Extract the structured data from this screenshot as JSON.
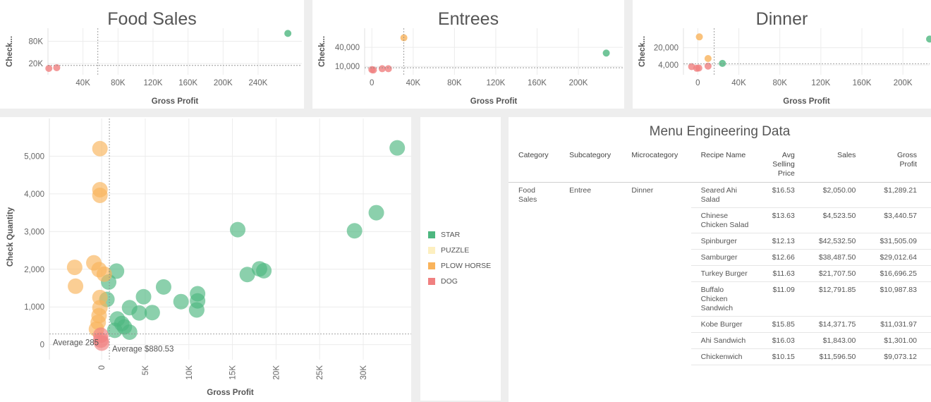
{
  "colors": {
    "star": "#4db77f",
    "puzzle": "#fdefc0",
    "plow_horse": "#f9b35b",
    "dog": "#f08080",
    "axis_text": "#666666",
    "grid": "#ececec"
  },
  "legend": {
    "items": [
      {
        "label": "STAR",
        "color": "#4db77f"
      },
      {
        "label": "PUZZLE",
        "color": "#fdefc0"
      },
      {
        "label": "PLOW HORSE",
        "color": "#f9b35b"
      },
      {
        "label": "DOG",
        "color": "#f08080"
      }
    ]
  },
  "chart_data": [
    {
      "type": "scatter",
      "title": "Food Sales",
      "xlabel": "Gross Profit",
      "ylabel": "Check...",
      "xlim": [
        0,
        290000
      ],
      "ylim": [
        -10000,
        115000
      ],
      "xticks": [
        40000,
        80000,
        120000,
        160000,
        200000,
        240000
      ],
      "xtick_labels": [
        "40K",
        "80K",
        "120K",
        "160K",
        "200K",
        "240K"
      ],
      "yticks": [
        20000,
        80000
      ],
      "ytick_labels": [
        "20K",
        "80K"
      ],
      "ref_x": 57000,
      "ref_y": 15000,
      "points": [
        {
          "x": 1000,
          "y": 7000,
          "cls": "dog"
        },
        {
          "x": 10000,
          "y": 9000,
          "cls": "dog"
        },
        {
          "x": 274000,
          "y": 101000,
          "cls": "star"
        }
      ]
    },
    {
      "type": "scatter",
      "title": "Entrees",
      "xlabel": "Gross Profit",
      "ylabel": "Check...",
      "xlim": [
        -7000,
        243000
      ],
      "ylim": [
        -3000,
        70000
      ],
      "xticks": [
        0,
        40000,
        80000,
        120000,
        160000,
        200000
      ],
      "xtick_labels": [
        "0",
        "40K",
        "80K",
        "120K",
        "160K",
        "200K"
      ],
      "yticks": [
        10000,
        40000
      ],
      "ytick_labels": [
        "10,000",
        "40,000"
      ],
      "ref_x": 31000,
      "ref_y": 8000,
      "points": [
        {
          "x": 0,
          "y": 5000,
          "cls": "dog"
        },
        {
          "x": 1500,
          "y": 4500,
          "cls": "dog"
        },
        {
          "x": 10000,
          "y": 6500,
          "cls": "dog"
        },
        {
          "x": 16000,
          "y": 6500,
          "cls": "dog"
        },
        {
          "x": 31000,
          "y": 55000,
          "cls": "plow_horse"
        },
        {
          "x": 227000,
          "y": 31000,
          "cls": "star"
        }
      ]
    },
    {
      "type": "scatter",
      "title": "Dinner",
      "xlabel": "Gross Profit",
      "ylabel": "Check...",
      "xlim": [
        -14000,
        226000
      ],
      "ylim": [
        -5000,
        38000
      ],
      "xticks": [
        0,
        40000,
        80000,
        120000,
        160000,
        200000
      ],
      "xtick_labels": [
        "0",
        "40K",
        "80K",
        "120K",
        "160K",
        "200K"
      ],
      "yticks": [
        4000,
        20000
      ],
      "ytick_labels": [
        "4,000",
        "20,000"
      ],
      "ref_x": 16000,
      "ref_y": 5000,
      "points": [
        {
          "x": -6000,
          "y": 2500,
          "cls": "dog"
        },
        {
          "x": -1000,
          "y": 1000,
          "cls": "dog"
        },
        {
          "x": 1000,
          "y": 1200,
          "cls": "dog"
        },
        {
          "x": 10000,
          "y": 3000,
          "cls": "dog"
        },
        {
          "x": 1500,
          "y": 30000,
          "cls": "plow_horse"
        },
        {
          "x": 10000,
          "y": 10000,
          "cls": "plow_horse"
        },
        {
          "x": 24000,
          "y": 5500,
          "cls": "star"
        },
        {
          "x": 226000,
          "y": 28000,
          "cls": "star"
        }
      ]
    },
    {
      "type": "scatter",
      "title": "",
      "xlabel": "Gross Profit",
      "ylabel": "Check Quantity",
      "xlim": [
        -6000,
        35500
      ],
      "ylim": [
        -400,
        6000
      ],
      "xticks": [
        0,
        5000,
        10000,
        15000,
        20000,
        25000,
        30000
      ],
      "xtick_labels": [
        "0",
        "5K",
        "10K",
        "15K",
        "20K",
        "25K",
        "30K"
      ],
      "yticks": [
        0,
        1000,
        2000,
        3000,
        4000,
        5000
      ],
      "ytick_labels": [
        "0",
        "1,000",
        "2,000",
        "3,000",
        "4,000",
        "5,000"
      ],
      "ref_x": 880.53,
      "ref_y": 285,
      "ref_x_label": "Average $880.53",
      "ref_y_label": "Average 285",
      "points": [
        {
          "x": 33900,
          "y": 5220,
          "cls": "star"
        },
        {
          "x": 31500,
          "y": 3500,
          "cls": "star"
        },
        {
          "x": 29000,
          "y": 3020,
          "cls": "star"
        },
        {
          "x": 15600,
          "y": 3050,
          "cls": "star"
        },
        {
          "x": 18600,
          "y": 1960,
          "cls": "star"
        },
        {
          "x": 18100,
          "y": 2010,
          "cls": "star"
        },
        {
          "x": 16700,
          "y": 1860,
          "cls": "star"
        },
        {
          "x": 11000,
          "y": 1350,
          "cls": "star"
        },
        {
          "x": 11000,
          "y": 1160,
          "cls": "star"
        },
        {
          "x": 10900,
          "y": 920,
          "cls": "star"
        },
        {
          "x": 9100,
          "y": 1140,
          "cls": "star"
        },
        {
          "x": 7100,
          "y": 1530,
          "cls": "star"
        },
        {
          "x": 4800,
          "y": 1270,
          "cls": "star"
        },
        {
          "x": 5800,
          "y": 850,
          "cls": "star"
        },
        {
          "x": 4300,
          "y": 840,
          "cls": "star"
        },
        {
          "x": 3200,
          "y": 980,
          "cls": "star"
        },
        {
          "x": 1700,
          "y": 1950,
          "cls": "star"
        },
        {
          "x": 800,
          "y": 1660,
          "cls": "star"
        },
        {
          "x": 600,
          "y": 1200,
          "cls": "star"
        },
        {
          "x": 1800,
          "y": 680,
          "cls": "star"
        },
        {
          "x": 2300,
          "y": 560,
          "cls": "star"
        },
        {
          "x": 2600,
          "y": 470,
          "cls": "star"
        },
        {
          "x": 3200,
          "y": 330,
          "cls": "star"
        },
        {
          "x": 1500,
          "y": 380,
          "cls": "star"
        },
        {
          "x": -200,
          "y": 5200,
          "cls": "plow_horse"
        },
        {
          "x": -200,
          "y": 4110,
          "cls": "plow_horse"
        },
        {
          "x": -200,
          "y": 3960,
          "cls": "plow_horse"
        },
        {
          "x": -3100,
          "y": 2050,
          "cls": "plow_horse"
        },
        {
          "x": -900,
          "y": 2170,
          "cls": "plow_horse"
        },
        {
          "x": -300,
          "y": 1990,
          "cls": "plow_horse"
        },
        {
          "x": 300,
          "y": 1870,
          "cls": "plow_horse"
        },
        {
          "x": -3000,
          "y": 1550,
          "cls": "plow_horse"
        },
        {
          "x": -200,
          "y": 1250,
          "cls": "plow_horse"
        },
        {
          "x": -200,
          "y": 980,
          "cls": "plow_horse"
        },
        {
          "x": -300,
          "y": 770,
          "cls": "plow_horse"
        },
        {
          "x": -400,
          "y": 590,
          "cls": "plow_horse"
        },
        {
          "x": -600,
          "y": 410,
          "cls": "plow_horse"
        },
        {
          "x": -100,
          "y": 250,
          "cls": "dog"
        },
        {
          "x": -100,
          "y": 120,
          "cls": "dog"
        },
        {
          "x": 0,
          "y": 40,
          "cls": "dog"
        }
      ]
    }
  ],
  "table": {
    "title": "Menu Engineering Data",
    "columns": [
      "Category",
      "Subcategory",
      "Microcategory",
      "Recipe Name",
      "Avg Selling Price",
      "Sales",
      "Gross Profit"
    ],
    "group": {
      "category": "Food Sales",
      "subcategory": "Entree",
      "microcategory": "Dinner"
    },
    "rows": [
      {
        "recipe": "Seared Ahi Salad",
        "price": "$16.53",
        "sales": "$2,050.00",
        "profit": "$1,289.21"
      },
      {
        "recipe": "Chinese Chicken Salad",
        "price": "$13.63",
        "sales": "$4,523.50",
        "profit": "$3,440.57"
      },
      {
        "recipe": "Spinburger",
        "price": "$12.13",
        "sales": "$42,532.50",
        "profit": "$31,505.09"
      },
      {
        "recipe": "Samburger",
        "price": "$12.66",
        "sales": "$38,487.50",
        "profit": "$29,012.64"
      },
      {
        "recipe": "Turkey Burger",
        "price": "$11.63",
        "sales": "$21,707.50",
        "profit": "$16,696.25"
      },
      {
        "recipe": "Buffalo Chicken Sandwich",
        "price": "$11.09",
        "sales": "$12,791.85",
        "profit": "$10,987.83"
      },
      {
        "recipe": "Kobe Burger",
        "price": "$15.85",
        "sales": "$14,371.75",
        "profit": "$11,031.97"
      },
      {
        "recipe": "Ahi Sandwich",
        "price": "$16.03",
        "sales": "$1,843.00",
        "profit": "$1,301.00"
      },
      {
        "recipe": "Chickenwich",
        "price": "$10.15",
        "sales": "$11,596.50",
        "profit": "$9,073.12"
      }
    ]
  }
}
